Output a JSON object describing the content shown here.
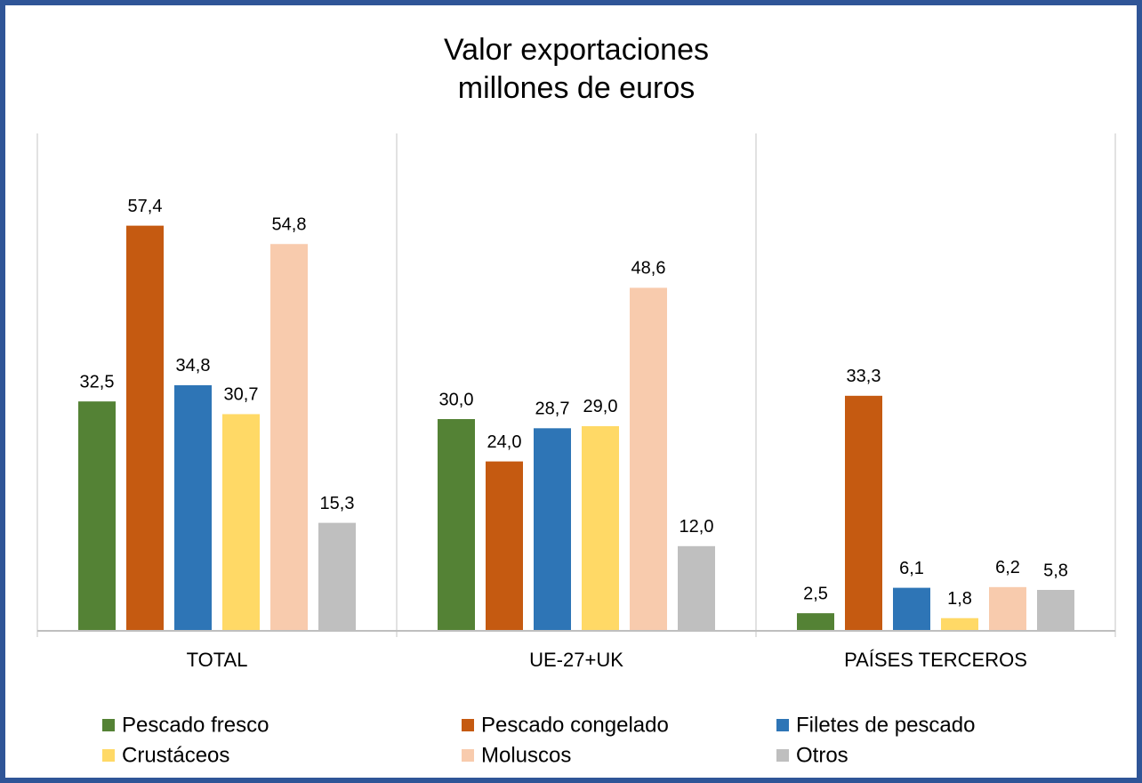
{
  "chart_data": {
    "type": "bar",
    "title": "Valor exportaciones",
    "subtitle": "millones de euros",
    "categories": [
      "TOTAL",
      "UE-27+UK",
      "PAÍSES TERCEROS"
    ],
    "ylim": [
      0,
      60
    ],
    "series": [
      {
        "name": "Pescado fresco",
        "color": "#548235",
        "values": [
          32.5,
          30.0,
          2.5
        ],
        "value_labels": [
          "32,5",
          "30,0",
          "2,5"
        ]
      },
      {
        "name": "Pescado congelado",
        "color": "#c55a11",
        "values": [
          57.4,
          24.0,
          33.3
        ],
        "value_labels": [
          "57,4",
          "24,0",
          "33,3"
        ]
      },
      {
        "name": "Filetes de pescado",
        "color": "#2e75b6",
        "values": [
          34.8,
          28.7,
          6.1
        ],
        "value_labels": [
          "34,8",
          "28,7",
          "6,1"
        ]
      },
      {
        "name": "Crustáceos",
        "color": "#ffd966",
        "values": [
          30.7,
          29.0,
          1.8
        ],
        "value_labels": [
          "30,7",
          "29,0",
          "1,8"
        ]
      },
      {
        "name": "Moluscos",
        "color": "#f8cbad",
        "values": [
          54.8,
          48.6,
          6.2
        ],
        "value_labels": [
          "54,8",
          "48,6",
          "6,2"
        ]
      },
      {
        "name": "Otros",
        "color": "#bfbfbf",
        "values": [
          15.3,
          12.0,
          5.8
        ],
        "value_labels": [
          "15,3",
          "12,0",
          "5,8"
        ]
      }
    ]
  }
}
